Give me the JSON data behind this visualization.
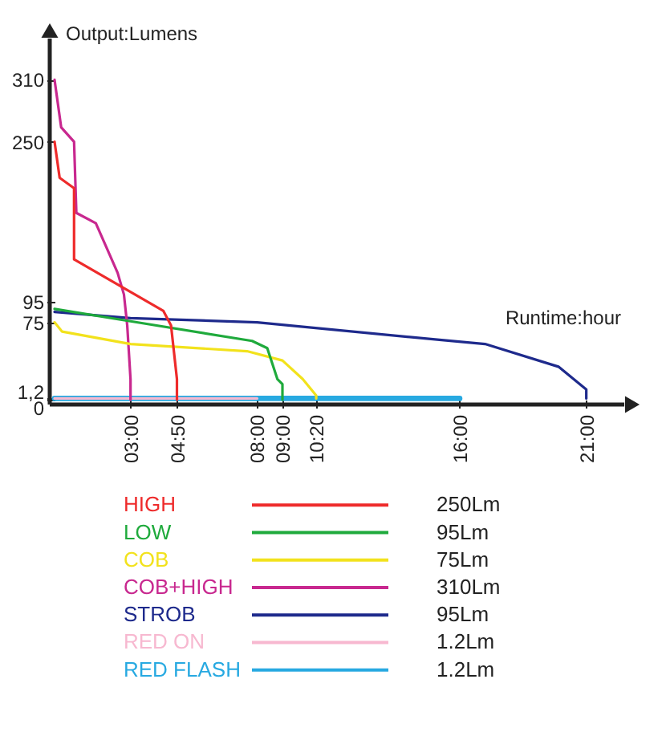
{
  "chart_data": {
    "type": "line",
    "xlabel": "Runtime:hour",
    "ylabel": "Output:Lumens",
    "xlim": [
      0,
      22.5
    ],
    "ylim": [
      0,
      350
    ],
    "xticks": [
      {
        "value": 3,
        "label": "03:00"
      },
      {
        "value": 4.833,
        "label": "04:50"
      },
      {
        "value": 8,
        "label": "08:00"
      },
      {
        "value": 9,
        "label": "09:00"
      },
      {
        "value": 10.333,
        "label": "10:20"
      },
      {
        "value": 16,
        "label": "16:00"
      },
      {
        "value": 21,
        "label": "21:00"
      }
    ],
    "yticks": [
      0,
      {
        "value": 1.2,
        "label": "1,2"
      },
      75,
      95,
      250,
      310
    ],
    "legend": "bottom",
    "marker": "none",
    "line_style": "solid",
    "annotations": [
      "250Lm",
      "95Lm",
      "75Lm",
      "310Lm",
      "95Lm",
      "1.2Lm",
      "1.2Lm"
    ],
    "series": [
      {
        "name": "HIGH",
        "color": "#ee2b2b",
        "x": [
          0,
          0.2,
          0.77,
          0.77,
          4.3,
          4.6,
          4.833,
          4.833
        ],
        "values": [
          250,
          215,
          205,
          136,
          86,
          72,
          20,
          0
        ]
      },
      {
        "name": "LOW",
        "color": "#1faa3c",
        "x": [
          0,
          3,
          7.8,
          8.4,
          8.8,
          9,
          9
        ],
        "values": [
          88,
          76,
          57,
          50,
          20,
          15,
          0
        ]
      },
      {
        "name": "COB",
        "color": "#f2e21c",
        "x": [
          0,
          0.3,
          3,
          7.6,
          9,
          9.8,
          10.333,
          10.333
        ],
        "values": [
          75,
          66,
          54,
          47,
          38,
          20,
          4,
          1.2
        ]
      },
      {
        "name": "COB+HIGH",
        "color": "#c8288f",
        "x": [
          0,
          0.26,
          0.77,
          0.86,
          1.63,
          2.49,
          2.74,
          2.87,
          3,
          3
        ],
        "values": [
          310,
          264,
          250,
          181,
          171,
          123,
          102,
          72,
          20,
          0
        ]
      },
      {
        "name": "STROB",
        "color": "#1e2a8c",
        "x": [
          0,
          3,
          8,
          15.2,
          17,
          19.9,
          21,
          21
        ],
        "values": [
          85,
          79,
          75,
          58,
          54,
          32,
          10,
          1.2
        ]
      },
      {
        "name": "RED ON",
        "color": "#f7b8d0",
        "x": [
          0,
          8
        ],
        "values": [
          1.2,
          1.2
        ]
      },
      {
        "name": "RED FLASH",
        "color": "#27a9e1",
        "x": [
          0,
          16
        ],
        "values": [
          1.2,
          1.2
        ]
      }
    ]
  }
}
